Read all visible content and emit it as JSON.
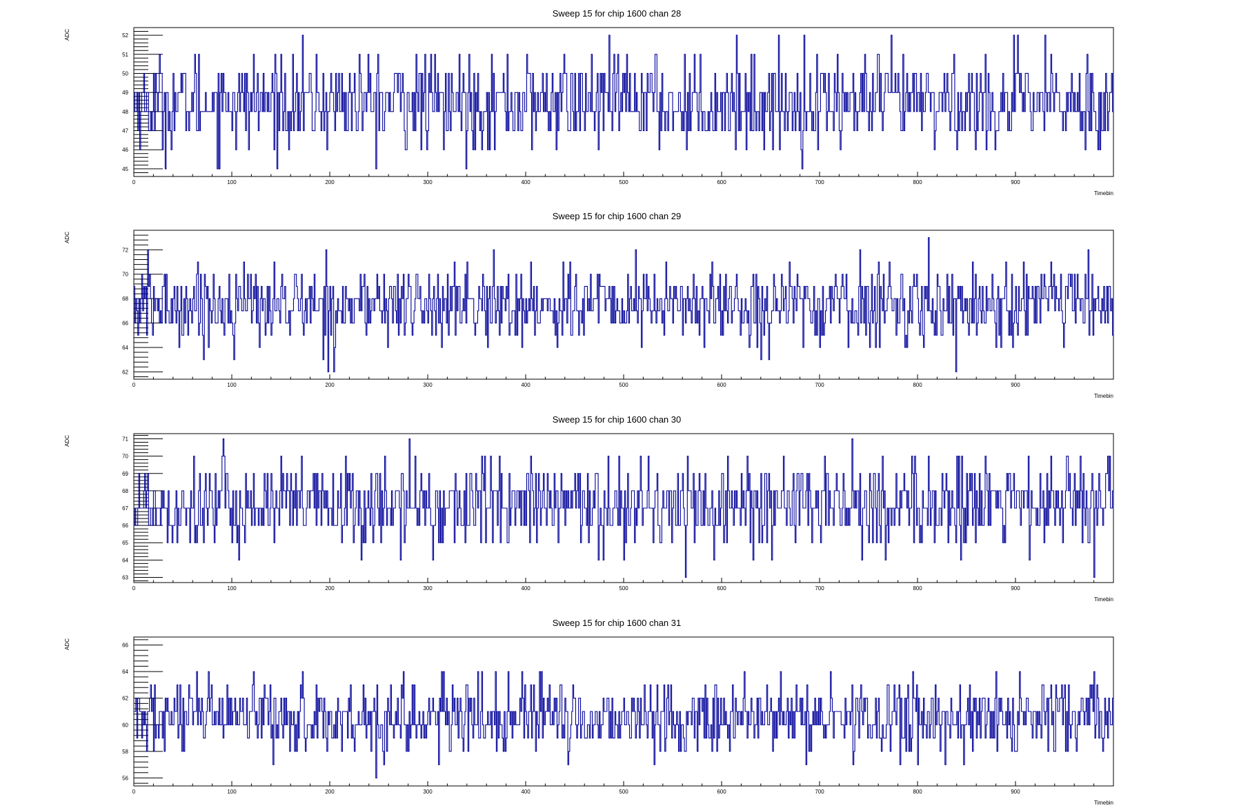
{
  "chart_data": [
    {
      "type": "line",
      "title": "Sweep 15 for chip 1600 chan 28",
      "xlabel": "Timebin",
      "ylabel": "ADC",
      "xlim": [
        0,
        1000
      ],
      "ylim": [
        44.6,
        52.4
      ],
      "xticks": [
        0,
        100,
        200,
        300,
        400,
        500,
        600,
        700,
        800,
        900
      ],
      "yticks": [
        45,
        46,
        47,
        48,
        49,
        50,
        51,
        52
      ],
      "grid": false,
      "legend": "none",
      "series": [
        {
          "x_start": 0,
          "x_step": 1,
          "mean": 48.5,
          "sd": 1.2,
          "values": []
        }
      ]
    },
    {
      "type": "line",
      "title": "Sweep 15 for chip 1600 chan 29",
      "xlabel": "Timebin",
      "ylabel": "ADC",
      "xlim": [
        0,
        1000
      ],
      "ylim": [
        61.4,
        73.6
      ],
      "xticks": [
        0,
        100,
        200,
        300,
        400,
        500,
        600,
        700,
        800,
        900
      ],
      "yticks": [
        62,
        64,
        66,
        68,
        70,
        72
      ],
      "grid": false,
      "legend": "none",
      "series": [
        {
          "x_start": 0,
          "x_step": 1,
          "mean": 67.5,
          "sd": 1.6,
          "values": []
        }
      ]
    },
    {
      "type": "line",
      "title": "Sweep 15 for chip 1600 chan 30",
      "xlabel": "Timebin",
      "ylabel": "ADC",
      "xlim": [
        0,
        1000
      ],
      "ylim": [
        62.7,
        71.3
      ],
      "xticks": [
        0,
        100,
        200,
        300,
        400,
        500,
        600,
        700,
        800,
        900
      ],
      "yticks": [
        63,
        64,
        65,
        66,
        67,
        68,
        69,
        70,
        71
      ],
      "grid": false,
      "legend": "none",
      "series": [
        {
          "x_start": 0,
          "x_step": 1,
          "mean": 67.2,
          "sd": 1.3,
          "values": []
        }
      ]
    },
    {
      "type": "line",
      "title": "Sweep 15 for chip 1600 chan 31",
      "xlabel": "Timebin",
      "ylabel": "ADC",
      "xlim": [
        0,
        1000
      ],
      "ylim": [
        55.4,
        66.6
      ],
      "xticks": [
        0,
        100,
        200,
        300,
        400,
        500,
        600,
        700,
        800,
        900
      ],
      "yticks": [
        56,
        58,
        60,
        62,
        64,
        66
      ],
      "grid": false,
      "legend": "none",
      "series": [
        {
          "x_start": 0,
          "x_step": 1,
          "mean": 60.5,
          "sd": 1.4,
          "values": []
        }
      ]
    }
  ],
  "colors": {
    "line": "#000099",
    "axis": "#000000",
    "background": "#ffffff"
  }
}
